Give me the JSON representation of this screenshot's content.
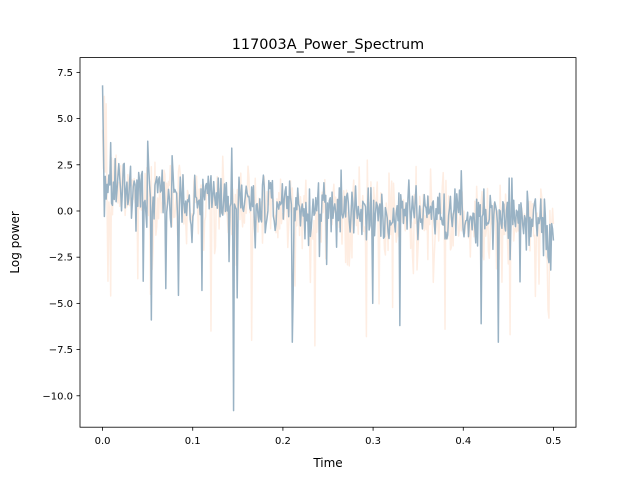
{
  "chart_data": {
    "type": "line",
    "title": "117003A_Power_Spectrum",
    "xlabel": "Time",
    "ylabel": "Log power",
    "xlim": [
      -0.025,
      0.525
    ],
    "ylim": [
      -11.7,
      8.3
    ],
    "xticks": [
      0.0,
      0.1,
      0.2,
      0.3,
      0.4,
      0.5
    ],
    "xtick_labels": [
      "0.0",
      "0.1",
      "0.2",
      "0.3",
      "0.4",
      "0.5"
    ],
    "yticks": [
      7.5,
      5.0,
      2.5,
      0.0,
      -2.5,
      -5.0,
      -7.5,
      -10.0
    ],
    "ytick_labels": [
      "7.5",
      "5.0",
      "2.5",
      "0.0",
      "−2.5",
      "−5.0",
      "−7.5",
      "−10.0"
    ],
    "grid": false,
    "series": [
      {
        "color": "#fde6d6",
        "alpha": 0.7,
        "x_range": [
          0.0,
          0.5
        ],
        "points": 500,
        "trend": {
          "start": 1.5,
          "end": -0.8
        },
        "noise_sd": 1.9,
        "extremes": [
          {
            "x": 0.002,
            "y": 6.2
          },
          {
            "x": 0.004,
            "y": 5.8
          },
          {
            "x": 0.006,
            "y": -3.8
          },
          {
            "x": 0.009,
            "y": -4.6
          },
          {
            "x": 0.12,
            "y": -6.5
          },
          {
            "x": 0.165,
            "y": -7.0
          },
          {
            "x": 0.235,
            "y": -7.3
          },
          {
            "x": 0.293,
            "y": -6.8
          },
          {
            "x": 0.38,
            "y": -6.4
          },
          {
            "x": 0.452,
            "y": -6.7
          },
          {
            "x": 0.495,
            "y": -5.8
          }
        ]
      },
      {
        "color": "#99b2c4",
        "x_range": [
          0.0,
          0.5
        ],
        "points": 500,
        "trend": {
          "start": 1.4,
          "end": -0.5
        },
        "noise_sd": 1.5,
        "extremes": [
          {
            "x": 0.0,
            "y": 6.8
          },
          {
            "x": 0.001,
            "y": 3.5
          },
          {
            "x": 0.002,
            "y": -0.3
          },
          {
            "x": 0.009,
            "y": 3.7
          },
          {
            "x": 0.045,
            "y": -3.8
          },
          {
            "x": 0.054,
            "y": -5.9
          },
          {
            "x": 0.07,
            "y": -4.2
          },
          {
            "x": 0.11,
            "y": -4.3
          },
          {
            "x": 0.143,
            "y": 3.4
          },
          {
            "x": 0.145,
            "y": -10.8
          },
          {
            "x": 0.149,
            "y": -4.7
          },
          {
            "x": 0.21,
            "y": -7.1
          },
          {
            "x": 0.3,
            "y": -5.0
          },
          {
            "x": 0.33,
            "y": -6.2
          },
          {
            "x": 0.42,
            "y": -6.1
          },
          {
            "x": 0.439,
            "y": -7.1
          },
          {
            "x": 0.497,
            "y": -3.2
          },
          {
            "x": 0.5,
            "y": -1.6
          }
        ]
      }
    ]
  }
}
